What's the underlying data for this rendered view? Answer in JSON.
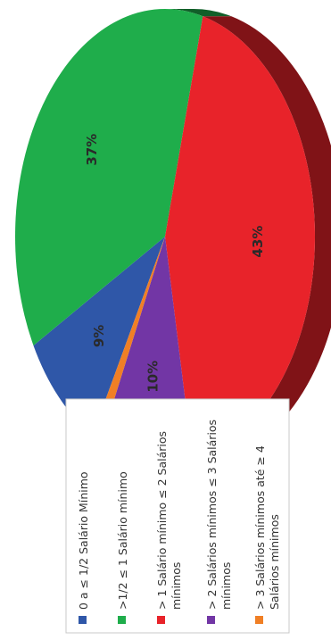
{
  "chart_data": {
    "type": "pie",
    "title": "",
    "legend_position": "bottom",
    "slices": [
      {
        "label": "0 a ≤ 1/2 Salário Mínimo",
        "value": 9,
        "display": "9%",
        "color": "#2f57a8"
      },
      {
        "label": ">1/2 ≤ 1 Salário mínimo",
        "value": 37,
        "display": "37%",
        "color": "#1fad4b"
      },
      {
        "label": "> 1 Salário mínimo ≤ 2 Salários mínimos",
        "value": 43,
        "display": "43%",
        "color": "#e8232a"
      },
      {
        "label": "> 2 Salários mínimos ≤ 3 Salários mínimos",
        "value": 10,
        "display": "10%",
        "color": "#7236a5"
      },
      {
        "label": "> 3 Salários mínimos até ≥ 4 Salários mínimos",
        "value": 1,
        "display": "1%",
        "color": "#f07f25"
      }
    ]
  }
}
